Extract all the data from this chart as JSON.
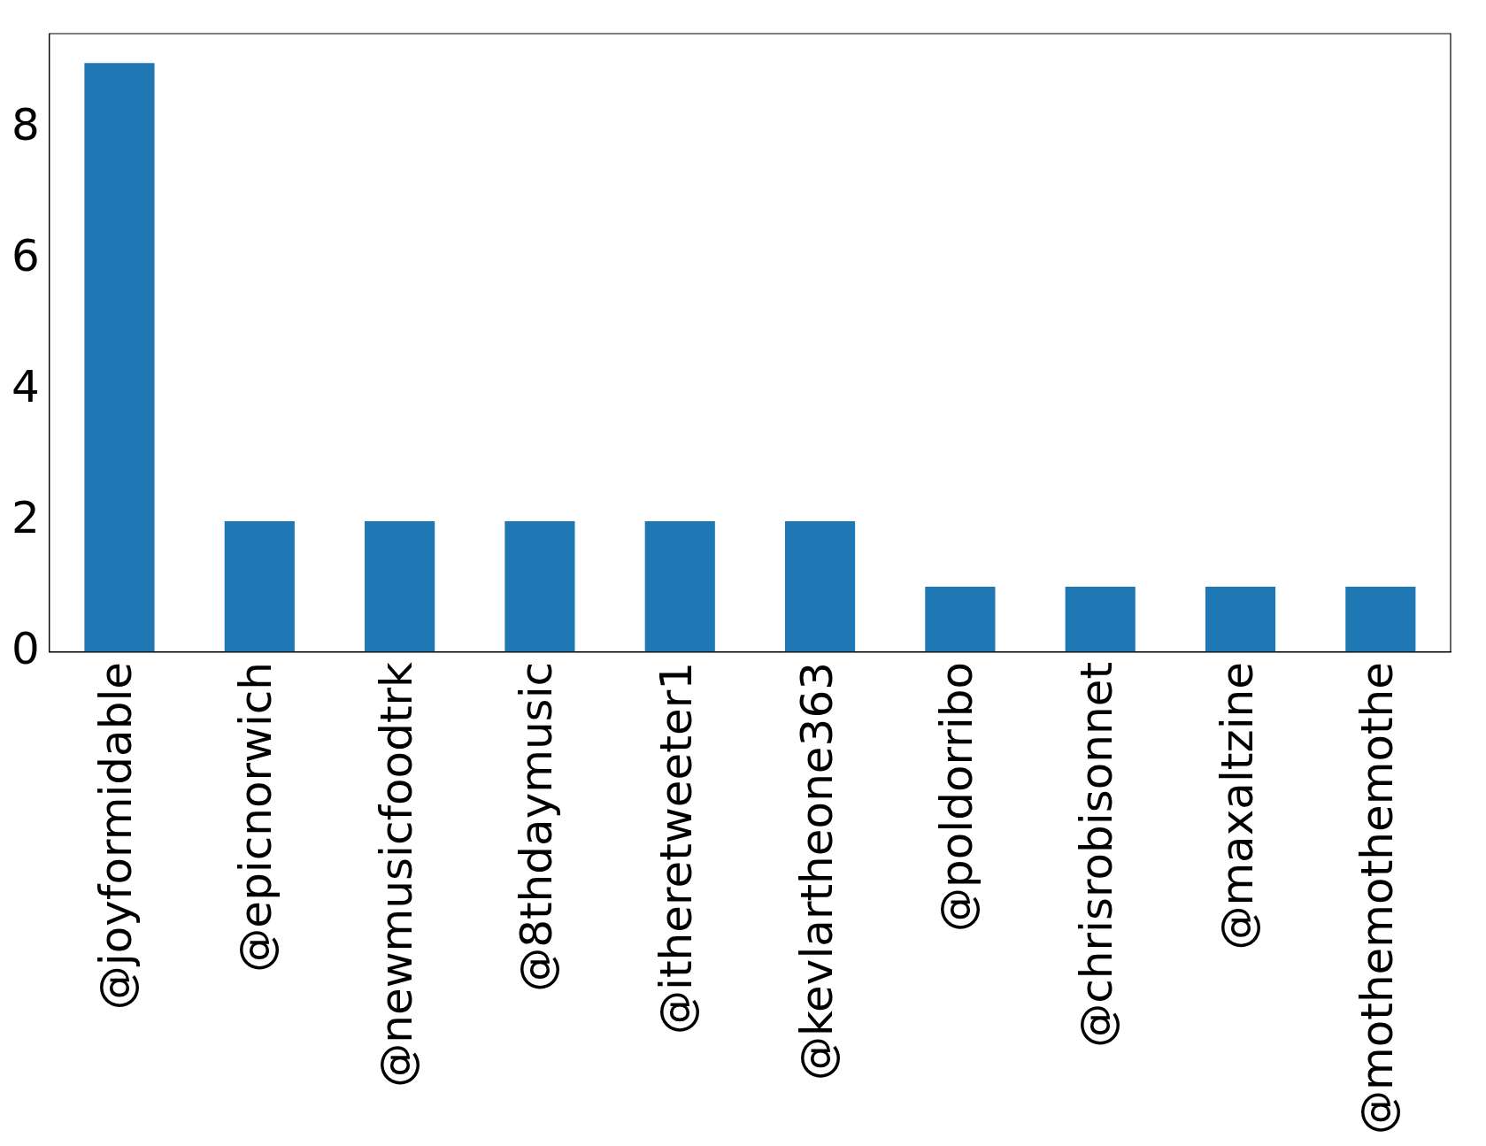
{
  "chart_data": {
    "type": "bar",
    "categories": [
      "@joyformidable",
      "@epicnorwich",
      "@newmusicfoodtrk",
      "@8thdaymusic",
      "@itheretweeter1",
      "@kevlartheone363",
      "@poldorribo",
      "@chrisrobisonnet",
      "@maxaltzine",
      "@mothemothemothe"
    ],
    "values": [
      9,
      2,
      2,
      2,
      2,
      2,
      1,
      1,
      1,
      1
    ],
    "color": "#1f77b4",
    "ylim": [
      0,
      9.45
    ],
    "yticks": [
      0,
      2,
      4,
      6,
      8
    ],
    "grid": false,
    "legend": false
  }
}
